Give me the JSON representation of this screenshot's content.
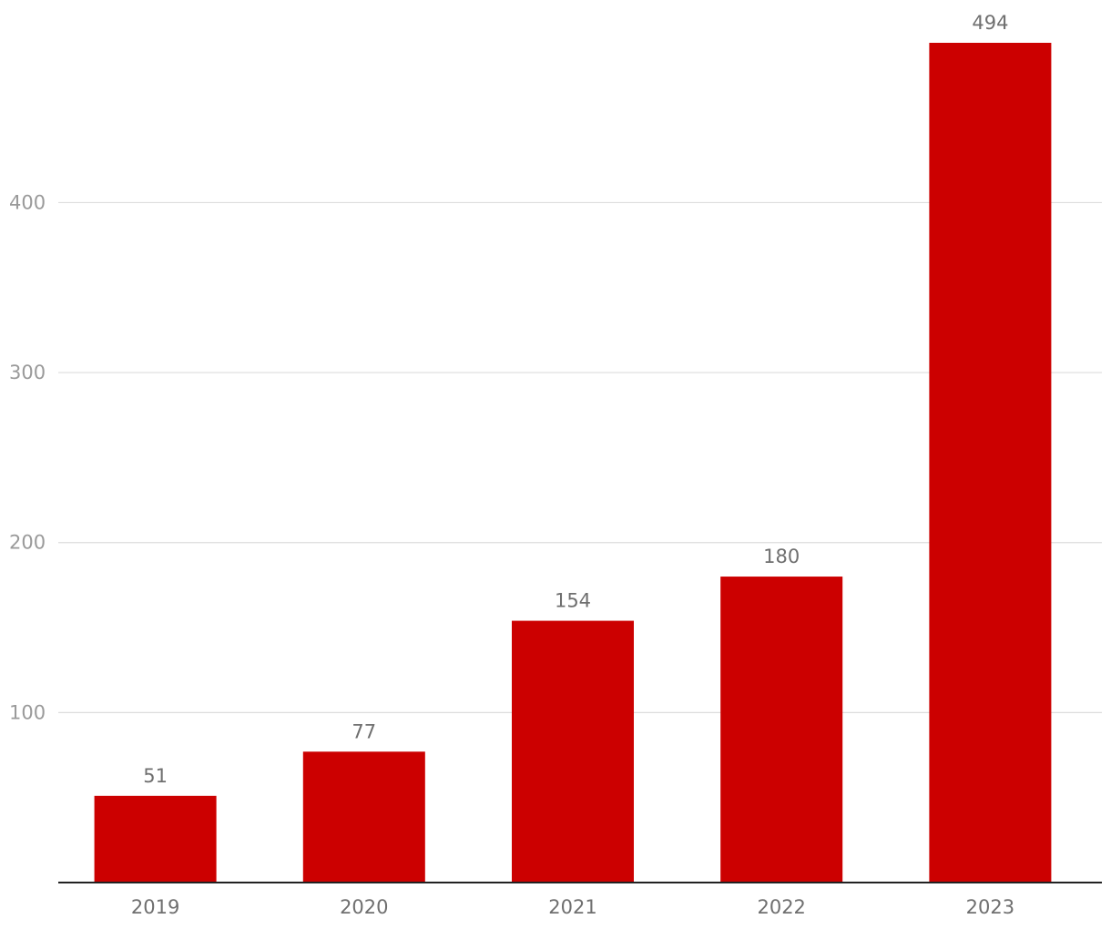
{
  "chart_data": {
    "type": "bar",
    "categories": [
      "2019",
      "2020",
      "2021",
      "2022",
      "2023"
    ],
    "values": [
      51,
      77,
      154,
      180,
      494
    ],
    "title": "",
    "xlabel": "",
    "ylabel": "",
    "ylim": [
      0,
      494
    ],
    "yticks": [
      100,
      200,
      300,
      400
    ],
    "grid": true,
    "legend": "none",
    "colors": {
      "bar": "#cc0000",
      "grid": "#dddddd",
      "axis": "#222222",
      "tick_label": "#9a9a9a",
      "category_label": "#6f6f6f",
      "data_label": "#6f6f6f"
    }
  }
}
